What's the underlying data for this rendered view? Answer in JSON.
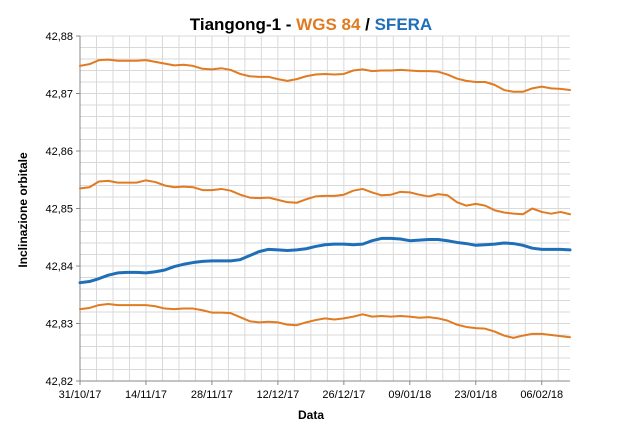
{
  "chart_data": {
    "type": "line",
    "title": {
      "prefix": "Tiangong-1 - ",
      "wgs": "WGS 84",
      "separator": " / ",
      "sfera": "SFERA"
    },
    "colors": {
      "wgs": "#e07b22",
      "sfera": "#1f6fb8",
      "grid": "#d9d9d9",
      "axis": "#888888"
    },
    "xlabel": "Data",
    "ylabel": "Inclinazione orbitale",
    "xlim": [
      "2017-10-31",
      "2018-02-12"
    ],
    "ylim": [
      42.82,
      42.88
    ],
    "grid": true,
    "x_tick_labels": [
      "31/10/17",
      "14/11/17",
      "28/11/17",
      "12/12/17",
      "26/12/17",
      "09/01/18",
      "23/01/18",
      "06/02/18"
    ],
    "y_tick_labels": [
      "42,82",
      "42,83",
      "42,84",
      "42,85",
      "42,86",
      "42,87",
      "42,88"
    ],
    "series": [
      {
        "color": "wgs",
        "x": [
          "2017-10-31",
          "2017-11-02",
          "2017-11-04",
          "2017-11-06",
          "2017-11-08",
          "2017-11-10",
          "2017-11-12",
          "2017-11-14",
          "2017-11-16",
          "2017-11-18",
          "2017-11-20",
          "2017-11-22",
          "2017-11-24",
          "2017-11-26",
          "2017-11-28",
          "2017-11-30",
          "2017-12-02",
          "2017-12-04",
          "2017-12-06",
          "2017-12-08",
          "2017-12-10",
          "2017-12-12",
          "2017-12-14",
          "2017-12-16",
          "2017-12-18",
          "2017-12-20",
          "2017-12-22",
          "2017-12-24",
          "2017-12-26",
          "2017-12-28",
          "2017-12-30",
          "2018-01-01",
          "2018-01-03",
          "2018-01-05",
          "2018-01-07",
          "2018-01-09",
          "2018-01-11",
          "2018-01-13",
          "2018-01-15",
          "2018-01-17",
          "2018-01-19",
          "2018-01-21",
          "2018-01-23",
          "2018-01-25",
          "2018-01-27",
          "2018-01-29",
          "2018-01-31",
          "2018-02-02",
          "2018-02-04",
          "2018-02-06",
          "2018-02-08",
          "2018-02-10",
          "2018-02-12"
        ],
        "values": [
          42.8748,
          42.8751,
          42.8758,
          42.8759,
          42.8757,
          42.8757,
          42.8757,
          42.8758,
          42.8755,
          42.8752,
          42.8749,
          42.875,
          42.8748,
          42.8743,
          42.8742,
          42.8744,
          42.8741,
          42.8734,
          42.873,
          42.8729,
          42.8729,
          42.8725,
          42.8722,
          42.8725,
          42.873,
          42.8733,
          42.8734,
          42.8733,
          42.8734,
          42.874,
          42.8742,
          42.8739,
          42.874,
          42.874,
          42.8741,
          42.874,
          42.8739,
          42.8739,
          42.8738,
          42.8733,
          42.8726,
          42.8722,
          42.872,
          42.872,
          42.8715,
          42.8706,
          42.8703,
          42.8703,
          42.8709,
          42.8712,
          42.8709,
          42.8708,
          42.8706
        ]
      },
      {
        "color": "wgs",
        "x": [
          "2017-10-31",
          "2017-11-02",
          "2017-11-04",
          "2017-11-06",
          "2017-11-08",
          "2017-11-10",
          "2017-11-12",
          "2017-11-14",
          "2017-11-16",
          "2017-11-18",
          "2017-11-20",
          "2017-11-22",
          "2017-11-24",
          "2017-11-26",
          "2017-11-28",
          "2017-11-30",
          "2017-12-02",
          "2017-12-04",
          "2017-12-06",
          "2017-12-08",
          "2017-12-10",
          "2017-12-12",
          "2017-12-14",
          "2017-12-16",
          "2017-12-18",
          "2017-12-20",
          "2017-12-22",
          "2017-12-24",
          "2017-12-26",
          "2017-12-28",
          "2017-12-30",
          "2018-01-01",
          "2018-01-03",
          "2018-01-05",
          "2018-01-07",
          "2018-01-09",
          "2018-01-11",
          "2018-01-13",
          "2018-01-15",
          "2018-01-17",
          "2018-01-19",
          "2018-01-21",
          "2018-01-23",
          "2018-01-25",
          "2018-01-27",
          "2018-01-29",
          "2018-01-31",
          "2018-02-02",
          "2018-02-04",
          "2018-02-06",
          "2018-02-08",
          "2018-02-10",
          "2018-02-12"
        ],
        "values": [
          42.8535,
          42.8537,
          42.8547,
          42.8548,
          42.8545,
          42.8545,
          42.8545,
          42.8549,
          42.8546,
          42.854,
          42.8537,
          42.8538,
          42.8537,
          42.8532,
          42.8532,
          42.8534,
          42.8531,
          42.8524,
          42.8519,
          42.8518,
          42.8519,
          42.8515,
          42.8511,
          42.851,
          42.8516,
          42.8521,
          42.8522,
          42.8522,
          42.8524,
          42.8531,
          42.8534,
          42.8528,
          42.8523,
          42.8524,
          42.8529,
          42.8528,
          42.8524,
          42.8521,
          42.8525,
          42.8523,
          42.8511,
          42.8505,
          42.8508,
          42.8505,
          42.8497,
          42.8493,
          42.8491,
          42.849,
          42.85,
          42.8494,
          42.8491,
          42.8494,
          42.849
        ]
      },
      {
        "color": "sfera",
        "x": [
          "2017-10-31",
          "2017-11-02",
          "2017-11-04",
          "2017-11-06",
          "2017-11-08",
          "2017-11-10",
          "2017-11-12",
          "2017-11-14",
          "2017-11-16",
          "2017-11-18",
          "2017-11-20",
          "2017-11-22",
          "2017-11-24",
          "2017-11-26",
          "2017-11-28",
          "2017-11-30",
          "2017-12-02",
          "2017-12-04",
          "2017-12-06",
          "2017-12-08",
          "2017-12-10",
          "2017-12-12",
          "2017-12-14",
          "2017-12-16",
          "2017-12-18",
          "2017-12-20",
          "2017-12-22",
          "2017-12-24",
          "2017-12-26",
          "2017-12-28",
          "2017-12-30",
          "2018-01-01",
          "2018-01-03",
          "2018-01-05",
          "2018-01-07",
          "2018-01-09",
          "2018-01-11",
          "2018-01-13",
          "2018-01-15",
          "2018-01-17",
          "2018-01-19",
          "2018-01-21",
          "2018-01-23",
          "2018-01-25",
          "2018-01-27",
          "2018-01-29",
          "2018-01-31",
          "2018-02-02",
          "2018-02-04",
          "2018-02-06",
          "2018-02-08",
          "2018-02-10",
          "2018-02-12"
        ],
        "values": [
          42.8371,
          42.8373,
          42.8378,
          42.8384,
          42.8388,
          42.8389,
          42.8389,
          42.8388,
          42.839,
          42.8393,
          42.8399,
          42.8403,
          42.8406,
          42.8408,
          42.8409,
          42.8409,
          42.8409,
          42.8411,
          42.8418,
          42.8425,
          42.8429,
          42.8428,
          42.8427,
          42.8428,
          42.843,
          42.8434,
          42.8437,
          42.8438,
          42.8438,
          42.8437,
          42.8438,
          42.8444,
          42.8448,
          42.8448,
          42.8447,
          42.8444,
          42.8445,
          42.8446,
          42.8446,
          42.8444,
          42.8441,
          42.8439,
          42.8436,
          42.8437,
          42.8438,
          42.844,
          42.8439,
          42.8436,
          42.8431,
          42.8429,
          42.8429,
          42.8429,
          42.8428
        ]
      },
      {
        "color": "wgs",
        "x": [
          "2017-10-31",
          "2017-11-02",
          "2017-11-04",
          "2017-11-06",
          "2017-11-08",
          "2017-11-10",
          "2017-11-12",
          "2017-11-14",
          "2017-11-16",
          "2017-11-18",
          "2017-11-20",
          "2017-11-22",
          "2017-11-24",
          "2017-11-26",
          "2017-11-28",
          "2017-11-30",
          "2017-12-02",
          "2017-12-04",
          "2017-12-06",
          "2017-12-08",
          "2017-12-10",
          "2017-12-12",
          "2017-12-14",
          "2017-12-16",
          "2017-12-18",
          "2017-12-20",
          "2017-12-22",
          "2017-12-24",
          "2017-12-26",
          "2017-12-28",
          "2017-12-30",
          "2018-01-01",
          "2018-01-03",
          "2018-01-05",
          "2018-01-07",
          "2018-01-09",
          "2018-01-11",
          "2018-01-13",
          "2018-01-15",
          "2018-01-17",
          "2018-01-19",
          "2018-01-21",
          "2018-01-23",
          "2018-01-25",
          "2018-01-27",
          "2018-01-29",
          "2018-01-31",
          "2018-02-02",
          "2018-02-04",
          "2018-02-06",
          "2018-02-08",
          "2018-02-10",
          "2018-02-12"
        ],
        "values": [
          42.8325,
          42.8327,
          42.8332,
          42.8334,
          42.8332,
          42.8332,
          42.8332,
          42.8332,
          42.833,
          42.8326,
          42.8325,
          42.8326,
          42.8326,
          42.8323,
          42.8319,
          42.8319,
          42.8318,
          42.8311,
          42.8304,
          42.8302,
          42.8303,
          42.8302,
          42.8298,
          42.8297,
          42.8302,
          42.8306,
          42.8309,
          42.8307,
          42.8309,
          42.8312,
          42.8316,
          42.8312,
          42.8313,
          42.8312,
          42.8313,
          42.8312,
          42.831,
          42.8311,
          42.8309,
          42.8305,
          42.8298,
          42.8294,
          42.8292,
          42.8291,
          42.8286,
          42.8279,
          42.8275,
          42.8279,
          42.8282,
          42.8282,
          42.828,
          42.8278,
          42.8276
        ]
      }
    ]
  }
}
